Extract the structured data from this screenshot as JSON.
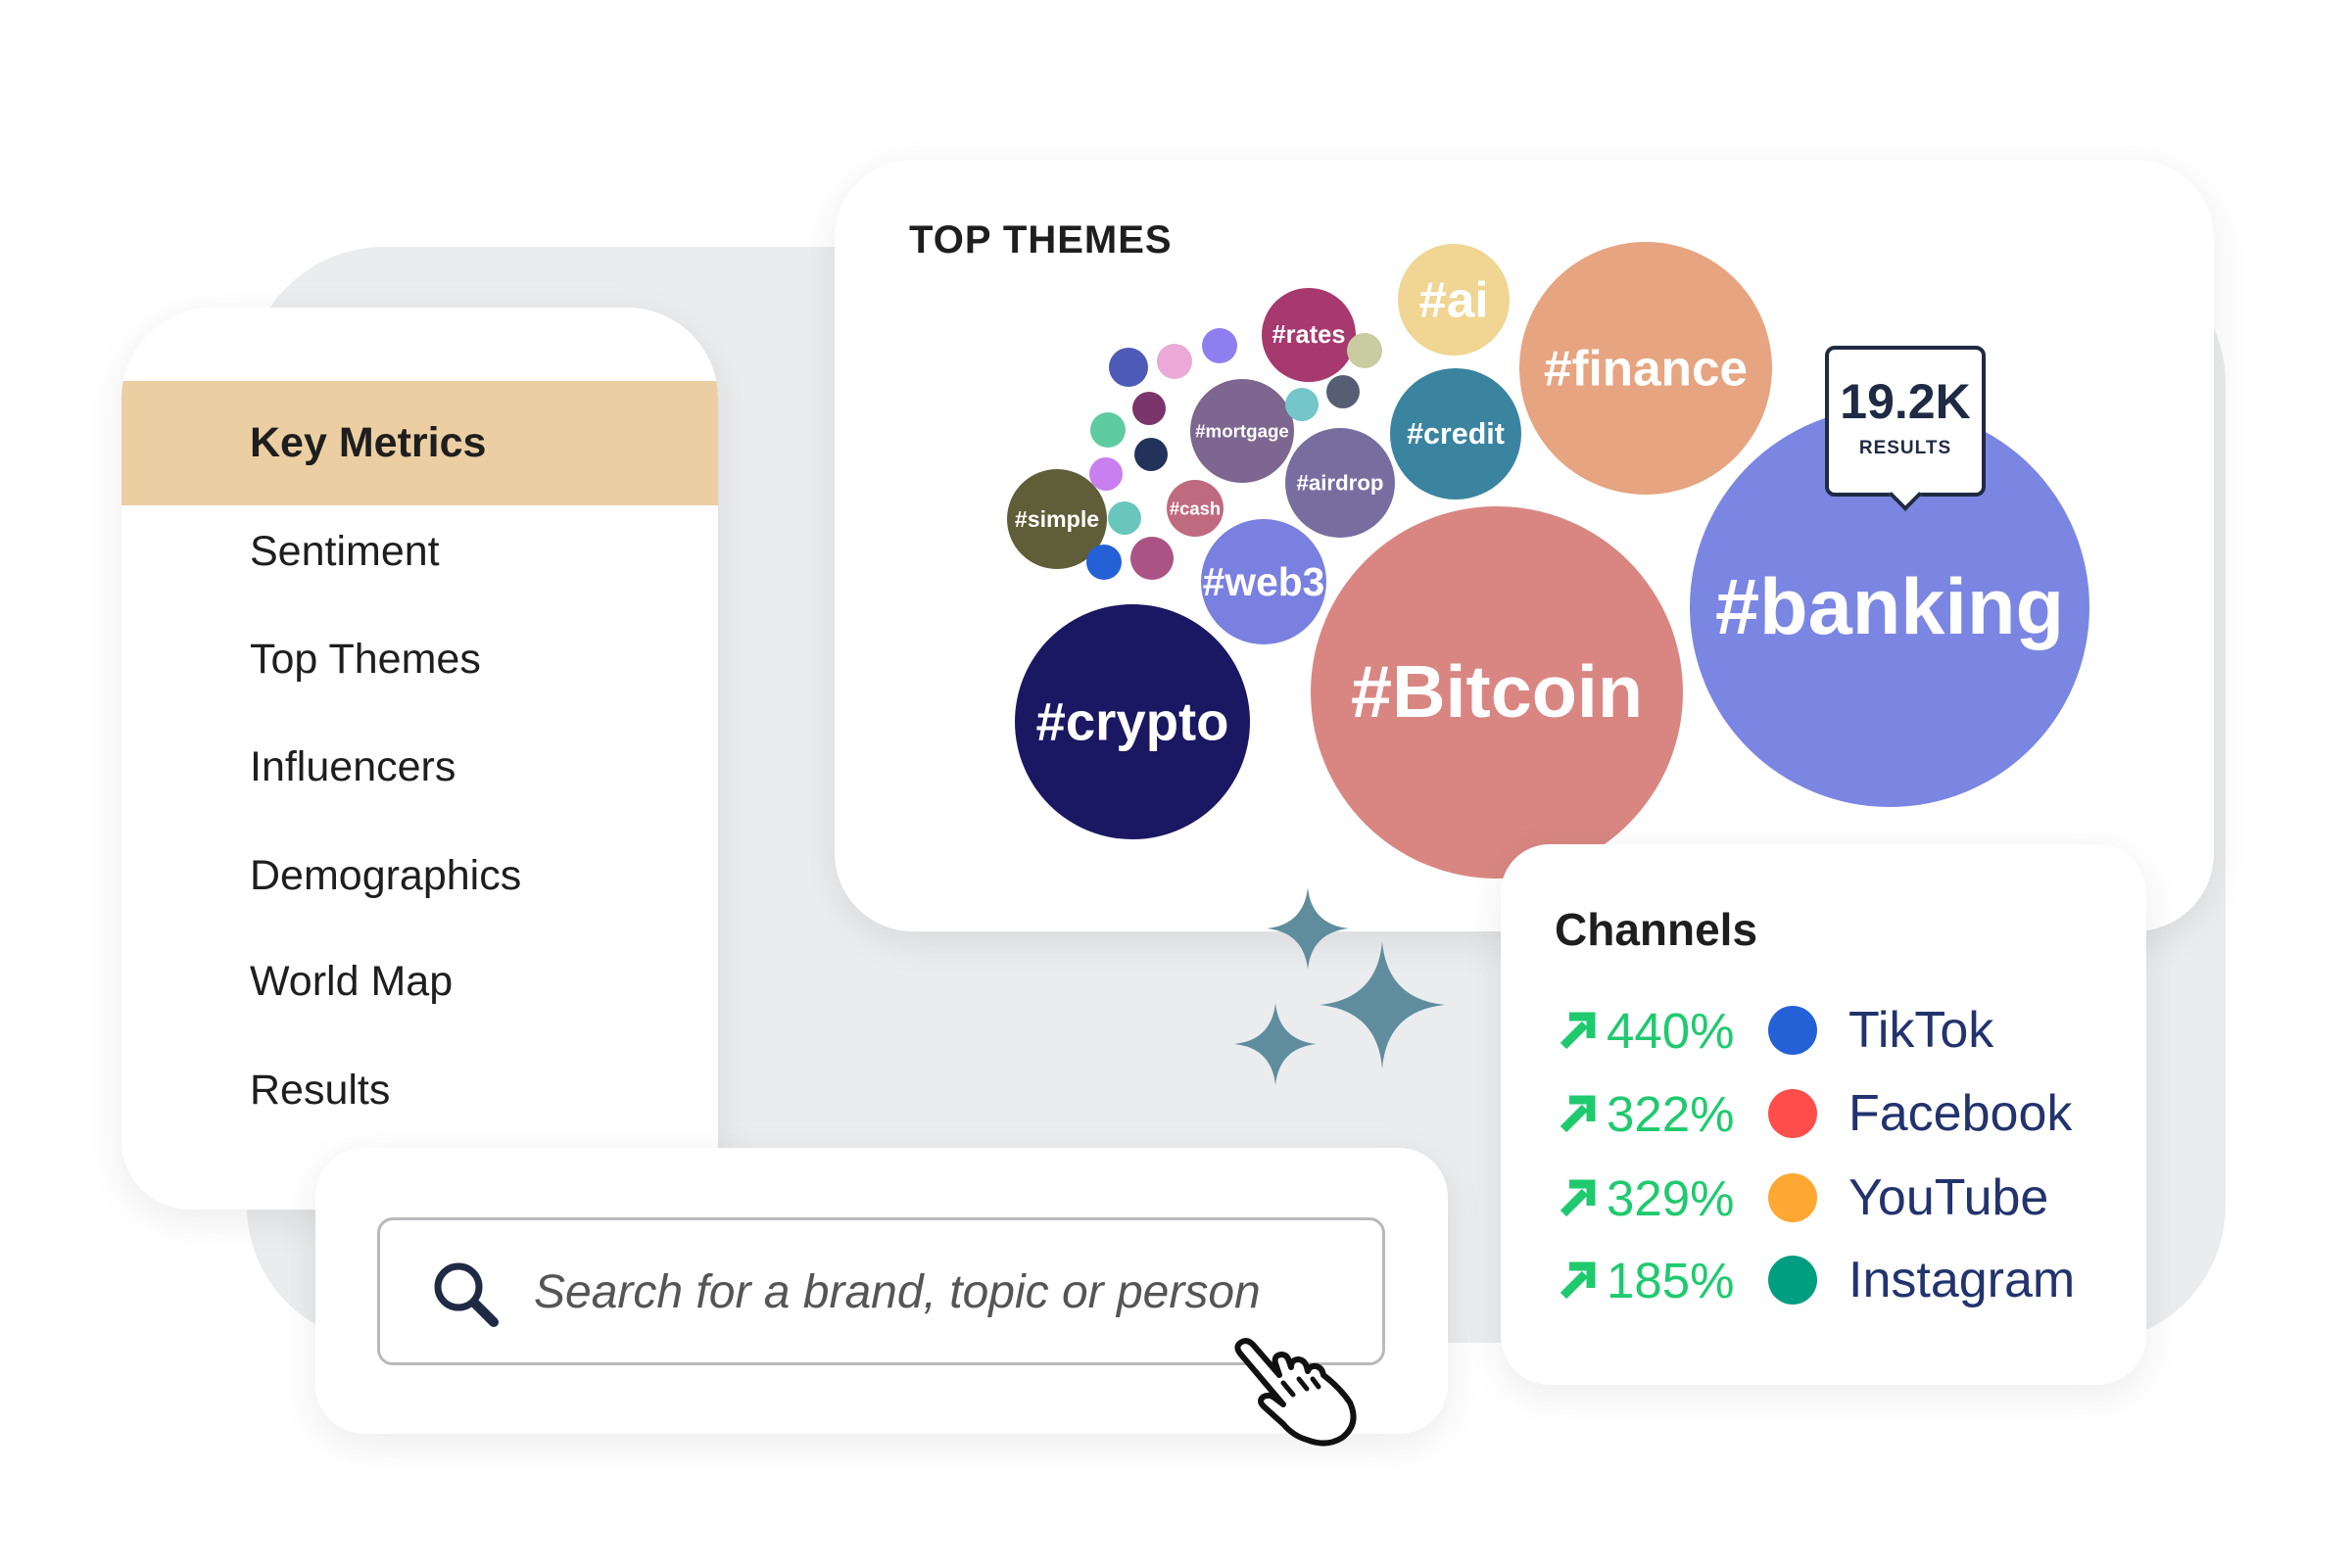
{
  "sidebar": {
    "items": [
      {
        "label": "Key Metrics",
        "active": true
      },
      {
        "label": "Sentiment"
      },
      {
        "label": "Top Themes"
      },
      {
        "label": "Influencers"
      },
      {
        "label": "Demographics"
      },
      {
        "label": "World Map"
      },
      {
        "label": "Results"
      }
    ],
    "active_color": "#ebcfa3"
  },
  "top_themes": {
    "title": "TOP THEMES",
    "tooltip": {
      "value": "19.2K",
      "label": "RESULTS"
    },
    "bubbles": [
      {
        "label": "#crypto",
        "color": "#1a1862"
      },
      {
        "label": "#Bitcoin",
        "color": "#d98682"
      },
      {
        "label": "#banking",
        "color": "#7b86e3"
      },
      {
        "label": "#finance",
        "color": "#e6a480"
      },
      {
        "label": "#ai",
        "color": "#f0d593"
      },
      {
        "label": "#credit",
        "color": "#3b84a0"
      },
      {
        "label": "#rates",
        "color": "#a6396e"
      },
      {
        "label": "#mortgage",
        "color": "#7d6690"
      },
      {
        "label": "#airdrop",
        "color": "#776e9f"
      },
      {
        "label": "#web3",
        "color": "#7a80e0"
      },
      {
        "label": "#simple",
        "color": "#5f5e38"
      },
      {
        "label": "#cash",
        "color": "#c06a80"
      },
      {
        "label": "",
        "color": "#4d5ab8"
      },
      {
        "label": "",
        "color": "#eaa9d6"
      },
      {
        "label": "",
        "color": "#8f7ef0"
      },
      {
        "label": "",
        "color": "#c9cba0"
      },
      {
        "label": "",
        "color": "#7a356a"
      },
      {
        "label": "",
        "color": "#74c6c8"
      },
      {
        "label": "",
        "color": "#555e72"
      },
      {
        "label": "",
        "color": "#5fcba0"
      },
      {
        "label": "",
        "color": "#22325a"
      },
      {
        "label": "",
        "color": "#c97ff0"
      },
      {
        "label": "",
        "color": "#69c6bc"
      },
      {
        "label": "",
        "color": "#2461d6"
      },
      {
        "label": "",
        "color": "#a95485"
      }
    ]
  },
  "channels": {
    "title": "Channels",
    "trend_icon": "arrow-up-right-icon",
    "trend_color": "#1fca6e",
    "rows": [
      {
        "change": "440%",
        "name": "TikTok",
        "color": "#2461d6"
      },
      {
        "change": "322%",
        "name": "Facebook",
        "color": "#fe4d4a"
      },
      {
        "change": "329%",
        "name": "YouTube",
        "color": "#fea833"
      },
      {
        "change": "185%",
        "name": "Instagram",
        "color": "#009e80"
      }
    ]
  },
  "search": {
    "placeholder": "Search for a brand, topic or person",
    "value": "",
    "icon": "search-icon",
    "cursor_icon": "hand-pointer-icon"
  },
  "decor": {
    "sparkle_color": "#5f8d9e"
  }
}
